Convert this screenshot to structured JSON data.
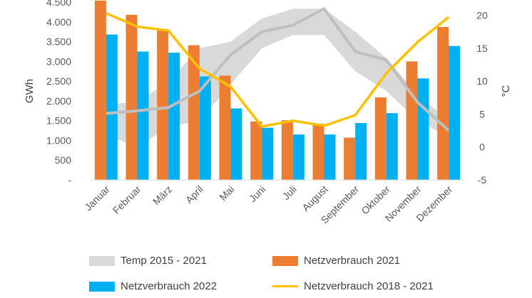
{
  "chart_data": {
    "type": "bar",
    "categories": [
      "Januar",
      "Februar",
      "März",
      "April",
      "Mai",
      "Juni",
      "Juli",
      "August",
      "September",
      "Oktober",
      "November",
      "Dezember"
    ],
    "ylabel": "GWh",
    "y2label": "°C",
    "ylim": [
      0,
      4500
    ],
    "y2lim": [
      -5,
      22
    ],
    "y_ticks": [
      "-",
      "500",
      "1.000",
      "1.500",
      "2.000",
      "2.500",
      "3.000",
      "3.500",
      "4.000",
      "4.500"
    ],
    "y2_ticks": [
      "-5",
      "0",
      "5",
      "10",
      "15",
      "20"
    ],
    "grid": false,
    "series": [
      {
        "name": "Temp 2015 - 2021",
        "type": "band",
        "axis": "right",
        "color": "#d9d9d9",
        "line_color": "#bfbfbf",
        "mean": [
          5.1,
          5.5,
          6.0,
          8.5,
          14.0,
          17.5,
          18.5,
          21.0,
          14.5,
          13.2,
          6.8,
          2.5
        ],
        "low": [
          1.8,
          0.0,
          3.0,
          4.0,
          9.5,
          15.0,
          17.0,
          17.0,
          11.5,
          8.5,
          4.0,
          1.5
        ],
        "high": [
          6.5,
          6.8,
          10.0,
          15.0,
          16.0,
          19.5,
          21.0,
          21.0,
          17.5,
          13.5,
          8.0,
          4.0
        ]
      },
      {
        "name": "Netzverbrauch 2021",
        "type": "bar",
        "axis": "left",
        "color": "#ed7d31",
        "values": [
          4540,
          4180,
          3790,
          3410,
          2640,
          1480,
          1510,
          1420,
          1070,
          2090,
          3000,
          3870
        ]
      },
      {
        "name": "Netzverbrauch 2022",
        "type": "bar",
        "axis": "left",
        "color": "#00b0f0",
        "values": [
          3680,
          3250,
          3220,
          2620,
          1810,
          1320,
          1150,
          1150,
          1440,
          1690,
          2570,
          3390
        ]
      },
      {
        "name": "Netzverbrauch 2018 - 2021",
        "type": "line",
        "axis": "left",
        "color": "#ffc000",
        "values": [
          4220,
          3880,
          3780,
          2820,
          2360,
          1350,
          1500,
          1370,
          1640,
          2700,
          3490,
          4120
        ]
      }
    ]
  }
}
